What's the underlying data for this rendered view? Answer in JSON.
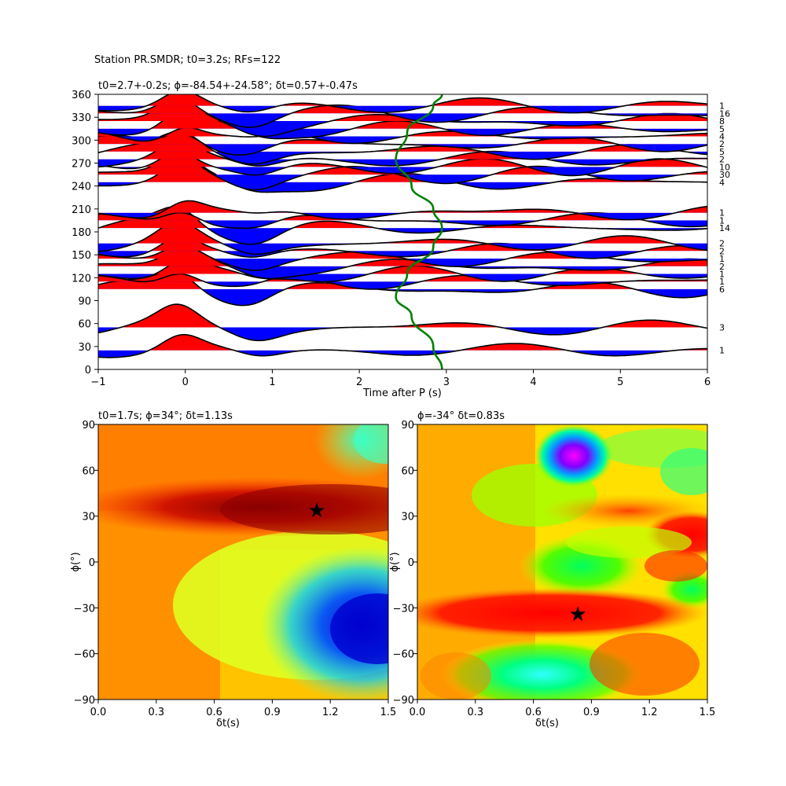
{
  "suptitle": "Station PR.SMDR; t0=3.2s; RFs=122",
  "colors": {
    "positive_fill": "#ff0000",
    "negative_fill": "#0000ff",
    "trace_line": "#000000",
    "delay_curve": "#008000"
  },
  "chart_data": [
    {
      "type": "line",
      "title": "t0=2.7+-0.2s; ϕ=-84.54+-24.58°; δt=0.57+-0.47s",
      "xlabel": "Time after P (s)",
      "ylabel": "",
      "xlim": [
        -1,
        6
      ],
      "ylim": [
        0,
        360
      ],
      "xticks": [
        "−1",
        "0",
        "1",
        "2",
        "3",
        "4",
        "5",
        "6"
      ],
      "yticks": [
        "0",
        "30",
        "60",
        "90",
        "120",
        "150",
        "180",
        "210",
        "240",
        "270",
        "300",
        "330",
        "360"
      ],
      "grid": false,
      "series": [
        {
          "baz": 25,
          "count": "1",
          "amp": 0.35
        },
        {
          "baz": 55,
          "count": "3",
          "amp": 0.4
        },
        {
          "baz": 105,
          "count": "6",
          "amp": 0.45
        },
        {
          "baz": 115,
          "count": "1",
          "amp": 0.4
        },
        {
          "baz": 125,
          "count": "1",
          "amp": 0.4
        },
        {
          "baz": 135,
          "count": "2",
          "amp": 0.4
        },
        {
          "baz": 145,
          "count": "1",
          "amp": 0.4
        },
        {
          "baz": 155,
          "count": "2",
          "amp": 0.4
        },
        {
          "baz": 165,
          "count": "2",
          "amp": 0.4
        },
        {
          "baz": 185,
          "count": "14",
          "amp": 0.45
        },
        {
          "baz": 195,
          "count": "1",
          "amp": 0.4
        },
        {
          "baz": 205,
          "count": "1",
          "amp": 0.4
        },
        {
          "baz": 245,
          "count": "4",
          "amp": 0.45
        },
        {
          "baz": 255,
          "count": "30",
          "amp": 0.45
        },
        {
          "baz": 265,
          "count": "10",
          "amp": 0.45
        },
        {
          "baz": 275,
          "count": "2",
          "amp": 0.4
        },
        {
          "baz": 285,
          "count": "5",
          "amp": 0.4
        },
        {
          "baz": 295,
          "count": "2",
          "amp": 0.4
        },
        {
          "baz": 305,
          "count": "4",
          "amp": 0.4
        },
        {
          "baz": 315,
          "count": "5",
          "amp": 0.4
        },
        {
          "baz": 325,
          "count": "8",
          "amp": 0.4
        },
        {
          "baz": 335,
          "count": "16",
          "amp": 0.45
        },
        {
          "baz": 345,
          "count": "1",
          "amp": 0.4
        }
      ],
      "delay_curve": [
        {
          "x": 2.95,
          "y": 0
        },
        {
          "x": 2.85,
          "y": 30
        },
        {
          "x": 2.6,
          "y": 70
        },
        {
          "x": 2.42,
          "y": 95
        },
        {
          "x": 2.55,
          "y": 125
        },
        {
          "x": 2.85,
          "y": 160
        },
        {
          "x": 2.95,
          "y": 185
        },
        {
          "x": 2.85,
          "y": 210
        },
        {
          "x": 2.6,
          "y": 240
        },
        {
          "x": 2.42,
          "y": 275
        },
        {
          "x": 2.55,
          "y": 310
        },
        {
          "x": 2.85,
          "y": 345
        },
        {
          "x": 2.95,
          "y": 360
        }
      ]
    },
    {
      "type": "heatmap",
      "title": "t0=1.7s; ϕ=34°; δt=1.13s",
      "xlabel": "δt(s)",
      "ylabel": "ϕ(°)",
      "xlim": [
        0,
        1.5
      ],
      "ylim": [
        -90,
        90
      ],
      "xticks": [
        "0.0",
        "0.3",
        "0.6",
        "0.9",
        "1.2",
        "1.5"
      ],
      "yticks": [
        "−90",
        "−60",
        "−30",
        "0",
        "30",
        "60",
        "90"
      ],
      "colormap": "jet",
      "best": {
        "x": 1.13,
        "y": 34
      }
    },
    {
      "type": "heatmap",
      "title": "ϕ=-34° δt=0.83s",
      "xlabel": "δt(s)",
      "ylabel": "ϕ(°)",
      "xlim": [
        0,
        1.5
      ],
      "ylim": [
        -90,
        90
      ],
      "xticks": [
        "0.0",
        "0.3",
        "0.6",
        "0.9",
        "1.2",
        "1.5"
      ],
      "yticks": [
        "−90",
        "−60",
        "−30",
        "0",
        "30",
        "60",
        "90"
      ],
      "colormap": "hsv",
      "best": {
        "x": 0.83,
        "y": -34
      }
    }
  ]
}
